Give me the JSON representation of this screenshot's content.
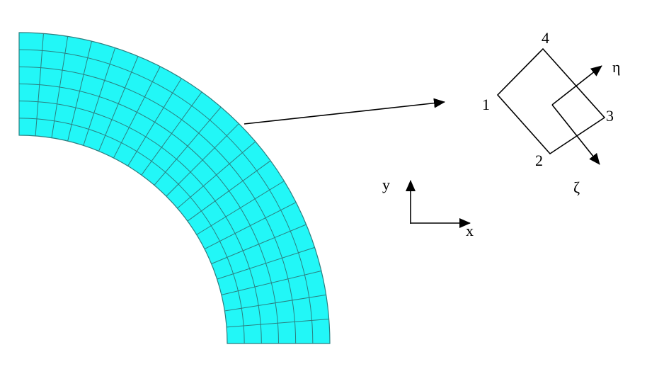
{
  "mesh": {
    "fill_color": "#22f7f7",
    "line_color": "#2c7f80",
    "radial_divisions": 6,
    "circumferential_divisions": 20
  },
  "element": {
    "node_labels": [
      "1",
      "2",
      "3",
      "4"
    ],
    "local_axes": {
      "eta": "η",
      "zeta": "ζ"
    }
  },
  "global_axes": {
    "x": "x",
    "y": "y"
  }
}
